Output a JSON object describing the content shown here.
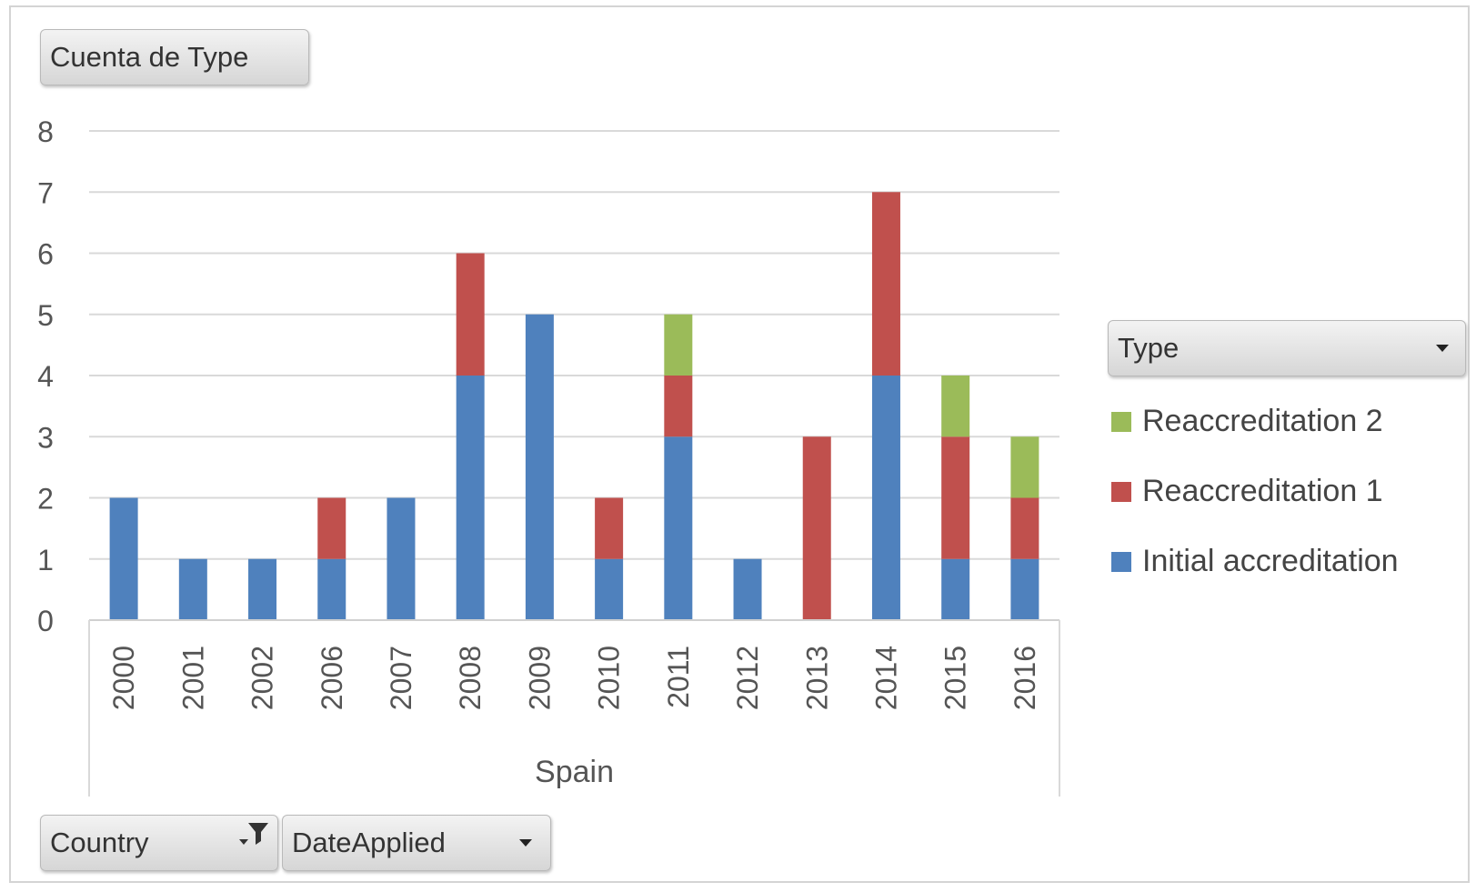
{
  "value_field": {
    "label": "Cuenta de Type"
  },
  "legend": {
    "field": {
      "label": "Type"
    },
    "items": [
      {
        "label": "Reaccreditation 2",
        "color": "#9bbb59"
      },
      {
        "label": "Reaccreditation 1",
        "color": "#c0504d"
      },
      {
        "label": "Initial accreditation",
        "color": "#4f81bd"
      }
    ]
  },
  "axis_fields": [
    {
      "label": "Country",
      "icon": "filter-dropdown-icon"
    },
    {
      "label": "DateApplied",
      "icon": "chevron-down-icon"
    }
  ],
  "chart_data": {
    "type": "bar",
    "stacked": true,
    "group_label": "Spain",
    "categories": [
      "2000",
      "2001",
      "2002",
      "2006",
      "2007",
      "2008",
      "2009",
      "2010",
      "2011",
      "2012",
      "2013",
      "2014",
      "2015",
      "2016"
    ],
    "series": [
      {
        "name": "Initial accreditation",
        "color": "#4f81bd",
        "values": [
          2,
          1,
          1,
          1,
          2,
          4,
          5,
          1,
          3,
          1,
          0,
          4,
          1,
          1
        ]
      },
      {
        "name": "Reaccreditation 1",
        "color": "#c0504d",
        "values": [
          0,
          0,
          0,
          1,
          0,
          2,
          0,
          1,
          1,
          0,
          3,
          3,
          2,
          1
        ]
      },
      {
        "name": "Reaccreditation 2",
        "color": "#9bbb59",
        "values": [
          0,
          0,
          0,
          0,
          0,
          0,
          0,
          0,
          1,
          0,
          0,
          0,
          1,
          1
        ]
      }
    ],
    "ylim": [
      0,
      8
    ],
    "yticks": [
      0,
      1,
      2,
      3,
      4,
      5,
      6,
      7,
      8
    ],
    "grid": true,
    "legend_position": "right"
  }
}
